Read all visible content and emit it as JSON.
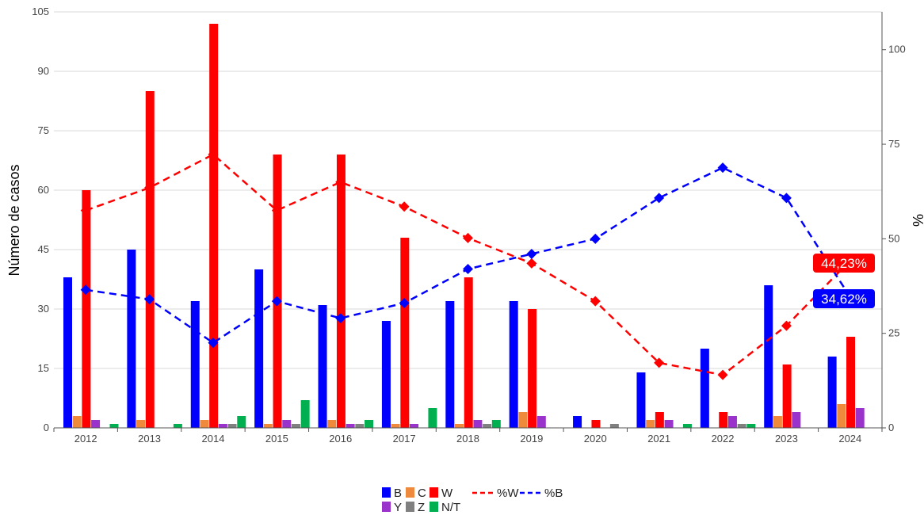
{
  "chart_data": {
    "type": "bar",
    "title": "",
    "ylabel": "Número de casos",
    "y2label": "%",
    "categories": [
      "2012",
      "2013",
      "2014",
      "2015",
      "2016",
      "2017",
      "2018",
      "2019",
      "2020",
      "2021",
      "2022",
      "2023",
      "2024"
    ],
    "ylim": [
      0,
      105
    ],
    "yticks": [
      0,
      15,
      30,
      45,
      60,
      75,
      90,
      105
    ],
    "y2lim": [
      0,
      110
    ],
    "y2ticks": [
      0,
      25,
      50,
      75,
      100
    ],
    "grid": true,
    "legend_position": "bottom",
    "series": [
      {
        "name": "B",
        "kind": "bar",
        "axis": "left",
        "color": "#0000ff",
        "values": [
          38,
          45,
          32,
          40,
          31,
          27,
          32,
          32,
          3,
          14,
          20,
          36,
          18
        ]
      },
      {
        "name": "C",
        "kind": "bar",
        "axis": "left",
        "color": "#ef8a3c",
        "values": [
          3,
          2,
          2,
          1,
          2,
          1,
          1,
          4,
          0,
          2,
          0,
          3,
          6
        ]
      },
      {
        "name": "W",
        "kind": "bar",
        "axis": "left",
        "color": "#ff0000",
        "values": [
          60,
          85,
          102,
          69,
          69,
          48,
          38,
          30,
          2,
          4,
          4,
          16,
          23
        ]
      },
      {
        "name": "Y",
        "kind": "bar",
        "axis": "left",
        "color": "#9933cc",
        "values": [
          2,
          0,
          1,
          2,
          1,
          1,
          2,
          3,
          0,
          2,
          3,
          4,
          5
        ]
      },
      {
        "name": "Z",
        "kind": "bar",
        "axis": "left",
        "color": "#808080",
        "values": [
          0,
          0,
          1,
          1,
          1,
          0,
          1,
          0,
          1,
          0,
          1,
          0,
          0
        ]
      },
      {
        "name": "N/T",
        "kind": "bar",
        "axis": "left",
        "color": "#00b050",
        "values": [
          1,
          1,
          3,
          7,
          2,
          5,
          2,
          0,
          0,
          1,
          1,
          0,
          0
        ]
      },
      {
        "name": "%W",
        "kind": "line",
        "axis": "right",
        "color": "#ff0000",
        "values": [
          57.5,
          63.5,
          72.3,
          57.5,
          65,
          58.5,
          50.2,
          43.5,
          33.5,
          17.2,
          14,
          27,
          44.23
        ]
      },
      {
        "name": "%B",
        "kind": "line",
        "axis": "right",
        "color": "#0000ff",
        "values": [
          36.5,
          34,
          22.5,
          33.5,
          29,
          33,
          42,
          46,
          50,
          60.8,
          68.8,
          60.8,
          34.62
        ]
      }
    ],
    "annotations": [
      {
        "series": "%W",
        "category": "2024",
        "label": "44,23%",
        "color": "#ff0000"
      },
      {
        "series": "%B",
        "category": "2024",
        "label": "34,62%",
        "color": "#0000ff"
      }
    ],
    "legend": {
      "rows": [
        [
          "B",
          "C",
          "W",
          "%W",
          "%B"
        ],
        [
          "Y",
          "Z",
          "N/T"
        ]
      ]
    }
  }
}
